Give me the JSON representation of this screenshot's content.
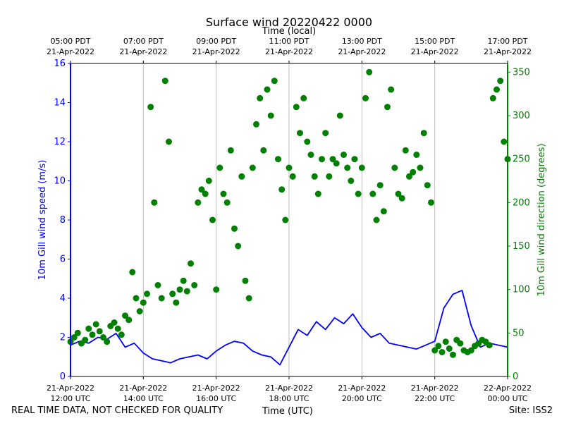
{
  "chart_data": {
    "type": "line+scatter",
    "title": "Surface wind 20220422 0000",
    "top_axis_label": "Time (local)",
    "xlabel": "Time (UTC)",
    "ylabel_left": "10m Gill wind speed (m/s)",
    "ylabel_right": "10m Gill wind direction (degrees)",
    "ylim_left": [
      0,
      16
    ],
    "ylim_right": [
      0,
      360
    ],
    "xlim_hours_utc": [
      12.0,
      24.0
    ],
    "left_ticks": [
      0,
      2,
      4,
      6,
      8,
      10,
      12,
      14,
      16
    ],
    "right_ticks": [
      0,
      50,
      100,
      150,
      200,
      250,
      300,
      350
    ],
    "bottom_ticks": [
      {
        "hour": 12,
        "line1": "21-Apr-2022",
        "line2": "12:00 UTC"
      },
      {
        "hour": 14,
        "line1": "21-Apr-2022",
        "line2": "14:00 UTC"
      },
      {
        "hour": 16,
        "line1": "21-Apr-2022",
        "line2": "16:00 UTC"
      },
      {
        "hour": 18,
        "line1": "21-Apr-2022",
        "line2": "18:00 UTC"
      },
      {
        "hour": 20,
        "line1": "21-Apr-2022",
        "line2": "20:00 UTC"
      },
      {
        "hour": 22,
        "line1": "21-Apr-2022",
        "line2": "22:00 UTC"
      },
      {
        "hour": 24,
        "line1": "22-Apr-2022",
        "line2": "00:00 UTC"
      }
    ],
    "top_ticks": [
      {
        "hour": 12,
        "line1": "05:00 PDT",
        "line2": "21-Apr-2022"
      },
      {
        "hour": 14,
        "line1": "07:00 PDT",
        "line2": "21-Apr-2022"
      },
      {
        "hour": 16,
        "line1": "09:00 PDT",
        "line2": "21-Apr-2022"
      },
      {
        "hour": 18,
        "line1": "11:00 PDT",
        "line2": "21-Apr-2022"
      },
      {
        "hour": 20,
        "line1": "13:00 PDT",
        "line2": "21-Apr-2022"
      },
      {
        "hour": 22,
        "line1": "15:00 PDT",
        "line2": "21-Apr-2022"
      },
      {
        "hour": 24,
        "line1": "17:00 PDT",
        "line2": "21-Apr-2022"
      }
    ],
    "grid": "vertical",
    "series": [
      {
        "name": "10m Gill wind speed (m/s)",
        "kind": "line",
        "color": "#0000ff",
        "axis": "left",
        "x": [
          12.0,
          12.25,
          12.5,
          12.75,
          13.0,
          13.25,
          13.5,
          13.75,
          14.0,
          14.25,
          14.5,
          14.75,
          15.0,
          15.25,
          15.5,
          15.75,
          16.0,
          16.25,
          16.5,
          16.75,
          17.0,
          17.25,
          17.5,
          17.75,
          18.0,
          18.25,
          18.5,
          18.75,
          19.0,
          19.25,
          19.5,
          19.75,
          20.0,
          20.25,
          20.5,
          20.75,
          21.0,
          21.25,
          21.5,
          21.75,
          22.0,
          22.25,
          22.5,
          22.75,
          23.0,
          23.25,
          23.5,
          23.75,
          24.0
        ],
        "values": [
          1.6,
          1.8,
          1.7,
          2.0,
          1.9,
          2.2,
          1.5,
          1.7,
          1.2,
          0.9,
          0.8,
          0.7,
          0.9,
          1.0,
          1.1,
          0.9,
          1.3,
          1.6,
          1.8,
          1.7,
          1.3,
          1.1,
          1.0,
          0.6,
          1.5,
          2.4,
          2.1,
          2.8,
          2.4,
          3.0,
          2.7,
          3.2,
          2.5,
          2.0,
          2.2,
          1.7,
          1.6,
          1.5,
          1.4,
          1.6,
          1.8,
          3.5,
          4.2,
          4.4,
          2.6,
          1.5,
          1.7,
          1.6,
          1.5
        ]
      },
      {
        "name": "10m Gill wind direction (degrees)",
        "kind": "scatter",
        "color": "#008000",
        "axis": "right",
        "x": [
          12.0,
          12.1,
          12.2,
          12.3,
          12.4,
          12.5,
          12.6,
          12.7,
          12.8,
          12.9,
          13.0,
          13.1,
          13.2,
          13.3,
          13.4,
          13.5,
          13.6,
          13.7,
          13.8,
          13.9,
          14.0,
          14.1,
          14.2,
          14.3,
          14.4,
          14.5,
          14.6,
          14.7,
          14.8,
          14.9,
          15.0,
          15.1,
          15.2,
          15.3,
          15.4,
          15.5,
          15.6,
          15.7,
          15.8,
          15.9,
          16.0,
          16.1,
          16.2,
          16.3,
          16.4,
          16.5,
          16.6,
          16.7,
          16.8,
          16.9,
          17.0,
          17.1,
          17.2,
          17.3,
          17.4,
          17.5,
          17.6,
          17.7,
          17.8,
          17.9,
          18.0,
          18.1,
          18.2,
          18.3,
          18.4,
          18.5,
          18.6,
          18.7,
          18.8,
          18.9,
          19.0,
          19.1,
          19.2,
          19.3,
          19.4,
          19.5,
          19.6,
          19.7,
          19.8,
          19.9,
          20.0,
          20.1,
          20.2,
          20.3,
          20.4,
          20.5,
          20.6,
          20.7,
          20.8,
          20.9,
          21.0,
          21.1,
          21.2,
          21.3,
          21.4,
          21.5,
          21.6,
          21.7,
          21.8,
          21.9,
          22.0,
          22.1,
          22.2,
          22.3,
          22.4,
          22.5,
          22.6,
          22.7,
          22.8,
          22.9,
          23.0,
          23.1,
          23.2,
          23.3,
          23.4,
          23.5,
          23.6,
          23.7,
          23.8,
          23.9,
          24.0
        ],
        "values": [
          40,
          45,
          50,
          38,
          42,
          55,
          48,
          60,
          52,
          45,
          40,
          58,
          62,
          55,
          48,
          70,
          65,
          120,
          90,
          75,
          85,
          95,
          310,
          200,
          105,
          90,
          340,
          270,
          95,
          85,
          100,
          110,
          98,
          130,
          105,
          200,
          215,
          210,
          225,
          180,
          100,
          240,
          210,
          200,
          260,
          170,
          150,
          230,
          110,
          90,
          240,
          290,
          320,
          260,
          330,
          300,
          340,
          250,
          215,
          180,
          240,
          230,
          310,
          280,
          320,
          270,
          255,
          230,
          210,
          250,
          280,
          230,
          250,
          245,
          300,
          255,
          240,
          225,
          250,
          210,
          240,
          320,
          350,
          210,
          180,
          220,
          190,
          310,
          330,
          240,
          210,
          205,
          260,
          230,
          235,
          255,
          240,
          280,
          220,
          200,
          30,
          35,
          28,
          40,
          32,
          25,
          42,
          38,
          30,
          28,
          30,
          35,
          38,
          42,
          40,
          36,
          320,
          330,
          340,
          270,
          250
        ]
      }
    ]
  },
  "footer": {
    "left": "REAL TIME DATA, NOT CHECKED FOR QUALITY",
    "center": "Time (UTC)",
    "right": "Site: ISS2"
  }
}
